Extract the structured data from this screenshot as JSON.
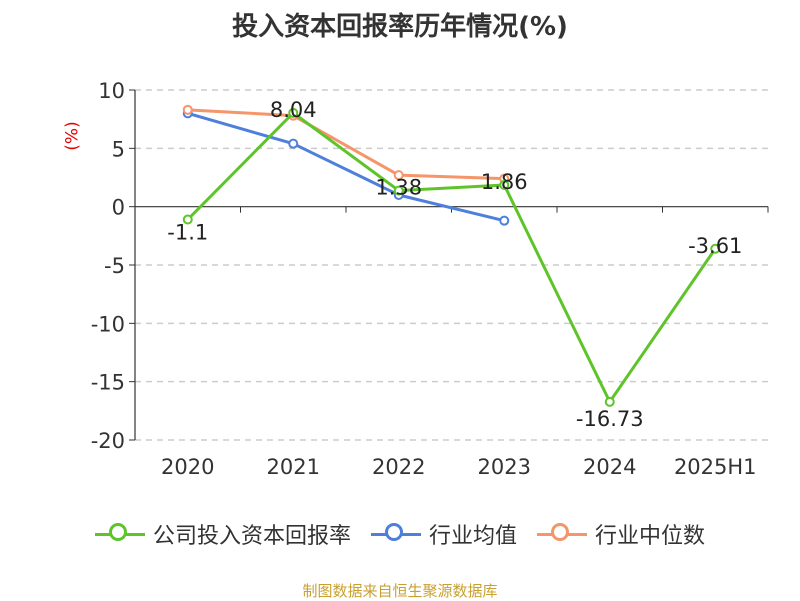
{
  "title": "投入资本回报率历年情况(%)",
  "y_unit": "(%)",
  "source": "制图数据来自恒生聚源数据库",
  "chart_data": {
    "type": "line",
    "title": "投入资本回报率历年情况(%)",
    "xlabel": "",
    "ylabel": "(%)",
    "categories": [
      "2020",
      "2021",
      "2022",
      "2023",
      "2024",
      "2025H1"
    ],
    "ylim": [
      -20,
      10
    ],
    "yticks": [
      10,
      5,
      0,
      -5,
      -10,
      -15,
      -20
    ],
    "grid": true,
    "legend_position": "bottom",
    "series": [
      {
        "name": "公司投入资本回报率",
        "color": "#5ec42a",
        "values": [
          -1.1,
          8.04,
          1.38,
          1.86,
          -16.73,
          -3.61
        ],
        "labels": [
          "-1.1",
          "8.04",
          "1.38",
          "1.86",
          "-16.73",
          "-3.61"
        ]
      },
      {
        "name": "行业均值",
        "color": "#4e7fdc",
        "values": [
          8.0,
          5.4,
          1.0,
          -1.2,
          null,
          null
        ]
      },
      {
        "name": "行业中位数",
        "color": "#f4956a",
        "values": [
          8.3,
          7.8,
          2.7,
          2.4,
          null,
          null
        ]
      }
    ]
  }
}
